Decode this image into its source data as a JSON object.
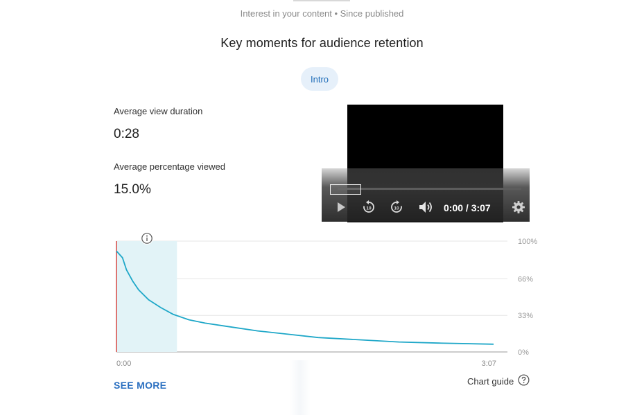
{
  "header": {
    "subtitle": "Interest in your content • Since published",
    "title": "Key moments for audience retention"
  },
  "chip": {
    "label": "Intro"
  },
  "metrics": [
    {
      "label": "Average view duration",
      "value": "0:28"
    },
    {
      "label": "Average percentage viewed",
      "value": "15.0%"
    }
  ],
  "player": {
    "time": "0:00 / 3:07",
    "icons": [
      "play-icon",
      "rewind-10-icon",
      "forward-10-icon",
      "volume-icon",
      "settings-gear-icon"
    ]
  },
  "chart_data": {
    "type": "line",
    "x": [
      0,
      3,
      5,
      8,
      11,
      16,
      22,
      28,
      36,
      44,
      55,
      70,
      85,
      100,
      120,
      140,
      160,
      187
    ],
    "y": [
      91,
      85,
      74,
      64,
      56,
      47,
      40,
      34,
      29,
      26,
      23,
      19,
      16,
      13,
      11,
      9,
      8,
      7
    ],
    "xunit": "seconds",
    "x_tick_labels": [
      "0:00",
      "3:07"
    ],
    "y_tick_labels": [
      "100%",
      "66%",
      "33%",
      "0%"
    ],
    "ylim": [
      0,
      100
    ],
    "xlim": [
      0,
      187
    ],
    "highlight_range": [
      0,
      30
    ],
    "line_color": "#1ea7c8",
    "highlight_color": "#e2f3f7",
    "marker_color": "#d9534f",
    "grid": true
  },
  "links": {
    "see_more": "SEE MORE",
    "chart_guide": "Chart guide"
  }
}
